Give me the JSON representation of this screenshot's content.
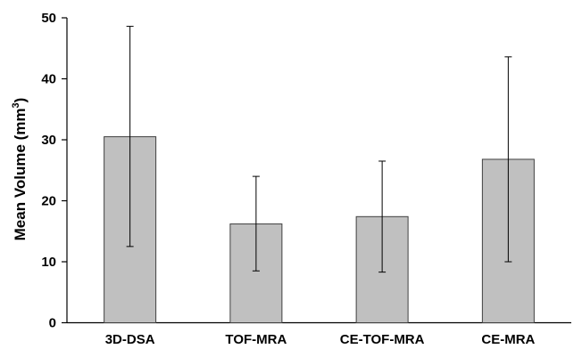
{
  "chart_data": {
    "type": "bar",
    "title": "",
    "xlabel": "",
    "ylabel_main": "Mean Volume (mm",
    "ylabel_sup": "3",
    "ylabel_close": ")",
    "categories": [
      "3D-DSA",
      "TOF-MRA",
      "CE-TOF-MRA",
      "CE-MRA"
    ],
    "values": [
      30.5,
      16.2,
      17.4,
      26.8
    ],
    "error_low": [
      12.5,
      8.5,
      8.3,
      10.0
    ],
    "error_high": [
      48.6,
      24.0,
      26.5,
      43.6
    ],
    "ylim": [
      0,
      50
    ],
    "yticks": [
      "0",
      "10",
      "20",
      "30",
      "40",
      "50"
    ],
    "grid": false,
    "bar_color": "#c0c0c0",
    "bar_edge_color": "#404040"
  }
}
